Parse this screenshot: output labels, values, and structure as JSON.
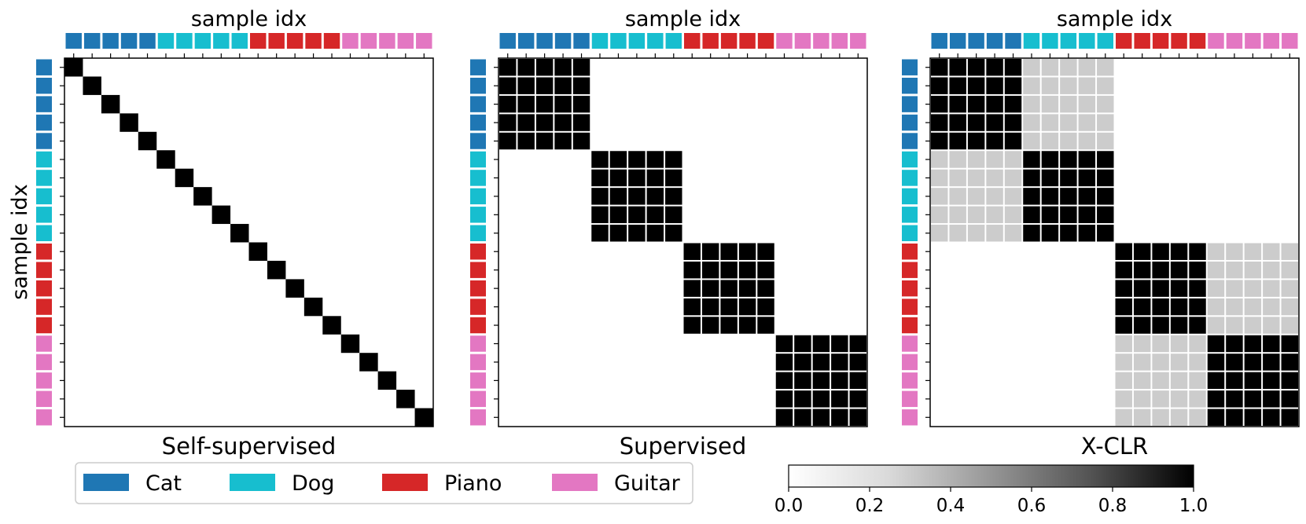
{
  "chart_data": {
    "type": "heatmap",
    "class_labels": [
      "Cat",
      "Dog",
      "Piano",
      "Guitar"
    ],
    "class_colors": [
      "#1f77b4",
      "#17becf",
      "#d62728",
      "#e377c2"
    ],
    "sample_classes": [
      0,
      0,
      0,
      0,
      0,
      1,
      1,
      1,
      1,
      1,
      2,
      2,
      2,
      2,
      2,
      3,
      3,
      3,
      3,
      3
    ],
    "xlabel": "sample idx",
    "ylabel": "sample idx",
    "panels": [
      {
        "title": "Self-supervised",
        "same_class": 0.0,
        "related_class": 0.0,
        "diagonal": 1.0,
        "other": 0.0
      },
      {
        "title": "Supervised",
        "same_class": 1.0,
        "related_class": 0.0,
        "diagonal": 1.0,
        "other": 0.0
      },
      {
        "title": "X-CLR",
        "same_class": 1.0,
        "related_class": 0.2,
        "diagonal": 1.0,
        "other": 0.0,
        "related_pairs": [
          [
            0,
            1
          ],
          [
            1,
            0
          ],
          [
            2,
            3
          ],
          [
            3,
            2
          ]
        ]
      }
    ],
    "colorbar": {
      "cmap": "Greys",
      "vmin": 0.0,
      "vmax": 1.0,
      "ticks": [
        "0.0",
        "0.2",
        "0.4",
        "0.6",
        "0.8",
        "1.0"
      ]
    },
    "legend": {
      "placement": "bottom-left",
      "entries": [
        "Cat",
        "Dog",
        "Piano",
        "Guitar"
      ]
    }
  }
}
